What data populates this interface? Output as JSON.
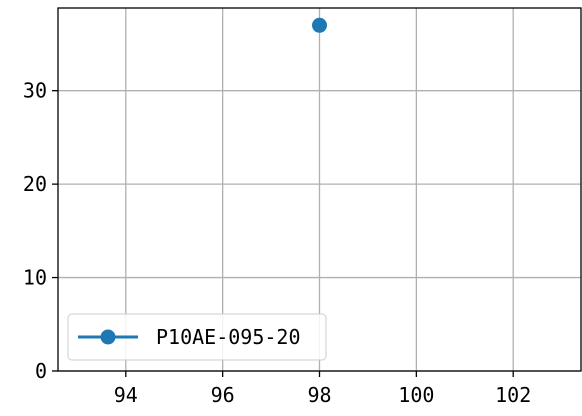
{
  "chart_data": {
    "type": "line",
    "title": "",
    "xlabel": "",
    "ylabel": "",
    "xlim": [
      92.6,
      103.4
    ],
    "ylim": [
      0,
      38.85
    ],
    "x_ticks": [
      94,
      96,
      98,
      100,
      102
    ],
    "y_ticks": [
      0,
      10,
      20,
      30
    ],
    "grid": true,
    "legend_position": "lower-left",
    "series": [
      {
        "name": "P10AE-095-20",
        "color": "#1f77b4",
        "marker": "circle",
        "x": [
          98
        ],
        "y": [
          37
        ]
      }
    ]
  }
}
